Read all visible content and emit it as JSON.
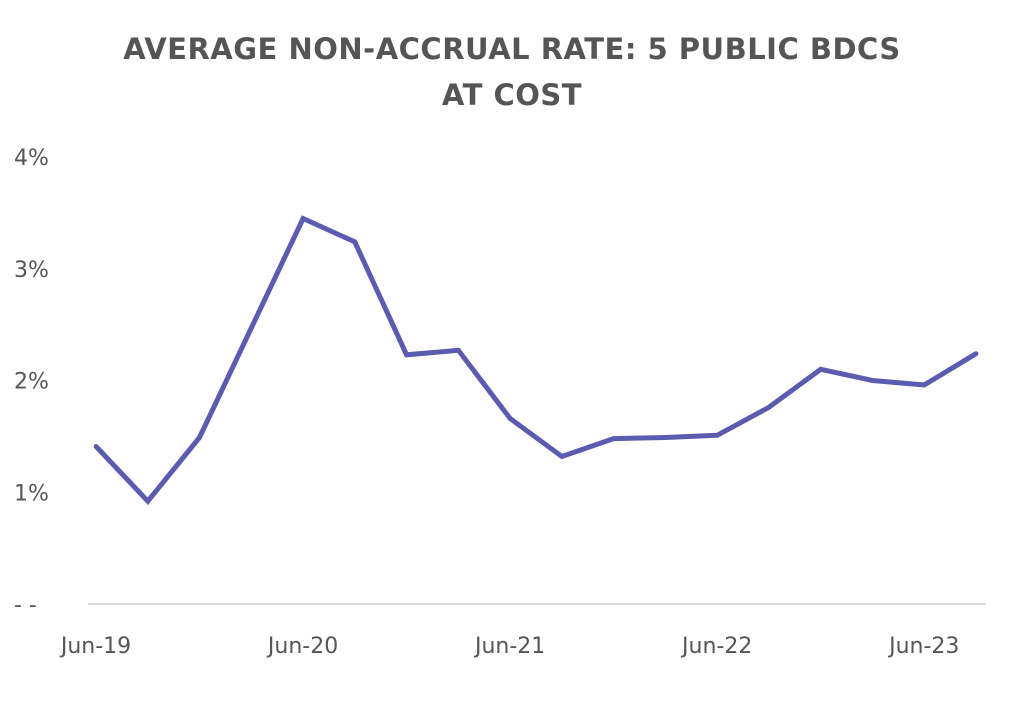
{
  "chart_data": {
    "type": "line",
    "title_lines": [
      "AVERAGE NON-ACCRUAL RATE: 5 PUBLIC BDCS",
      "AT COST"
    ],
    "xlabel": "",
    "ylabel": "",
    "x": [
      "Jun-19",
      "Sep-19",
      "Dec-19",
      "Mar-20",
      "Jun-20",
      "Sep-20",
      "Dec-20",
      "Mar-21",
      "Jun-21",
      "Sep-21",
      "Dec-21",
      "Mar-22",
      "Jun-22",
      "Sep-22",
      "Dec-22",
      "Mar-23",
      "Jun-23",
      "Sep-23"
    ],
    "x_tick_labels": [
      "Jun-19",
      "Jun-20",
      "Jun-21",
      "Jun-22",
      "Jun-23"
    ],
    "y_tick_labels": [
      "- -",
      "1%",
      "2%",
      "3%",
      "4%"
    ],
    "ylim": [
      0,
      4
    ],
    "grid": false,
    "legend": "none",
    "line_color": "#5b5bb0",
    "series": [
      {
        "values": [
          1.41,
          0.92,
          1.49,
          2.47,
          3.45,
          3.24,
          2.23,
          2.27,
          1.66,
          1.32,
          1.48,
          1.49,
          1.51,
          1.76,
          2.1,
          2.0,
          1.96,
          2.24
        ]
      }
    ]
  }
}
